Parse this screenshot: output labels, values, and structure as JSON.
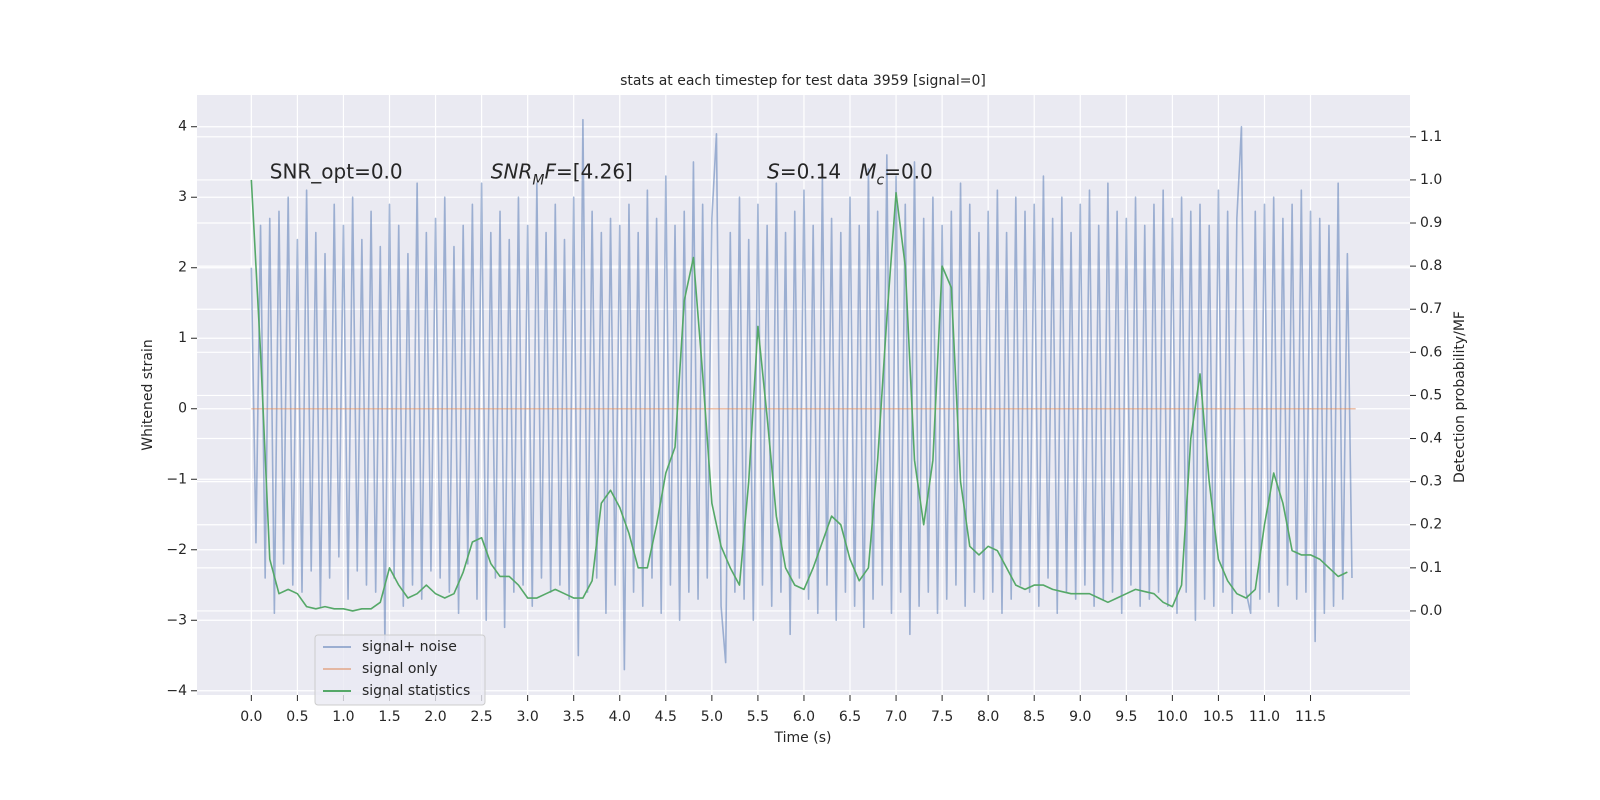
{
  "chart_data": {
    "type": "line",
    "title": "stats at each timestep for test data 3959 [signal=0]",
    "xlabel": "Time (s)",
    "ylabel": "Whitened strain",
    "y2label": "Detection probability/MF",
    "xlim": [
      -0.59,
      12.58
    ],
    "ylim": [
      -4.06,
      4.45
    ],
    "y2lim": [
      -0.195,
      1.197
    ],
    "xticks": [
      {
        "value": 0,
        "label": "0.0"
      },
      0.5,
      {
        "value": 1,
        "label": "1.0"
      },
      1.5,
      {
        "value": 2,
        "label": "2.0"
      },
      2.5,
      {
        "value": 3,
        "label": "3.0"
      },
      3.5,
      {
        "value": 4,
        "label": "4.0"
      },
      4.5,
      {
        "value": 5,
        "label": "5.0"
      },
      5.5,
      {
        "value": 6,
        "label": "6.0"
      },
      6.5,
      {
        "value": 7,
        "label": "7.0"
      },
      7.5,
      {
        "value": 8,
        "label": "8.0"
      },
      8.5,
      {
        "value": 9,
        "label": "9.0"
      },
      9.5,
      {
        "value": 10,
        "label": "10.0"
      },
      10.5,
      {
        "value": 11,
        "label": "11.0"
      },
      11.5
    ],
    "yticks": [
      {
        "value": -4,
        "label": "−4"
      },
      {
        "value": -3,
        "label": "−3"
      },
      {
        "value": -2,
        "label": "−2"
      },
      {
        "value": -1,
        "label": "−1"
      },
      0,
      1,
      2,
      3,
      4
    ],
    "y2ticks": [
      {
        "value": 0,
        "label": "0.0"
      },
      0.1,
      0.2,
      0.3,
      0.4,
      0.5,
      0.6,
      0.7,
      0.8,
      0.9,
      {
        "value": 1,
        "label": "1.0"
      },
      1.1
    ],
    "grid": true,
    "legend": "lower left",
    "annotations": [
      {
        "x": 0.2,
        "y": 3.35,
        "parts": [
          {
            "text": "SNR_opt=0.0"
          }
        ]
      },
      {
        "x": 2.6,
        "y": 3.35,
        "parts": [
          {
            "text": "SNR",
            "italic": true
          },
          {
            "text": "M",
            "italic": true,
            "sub": true
          },
          {
            "text": "F",
            "italic": true
          },
          {
            "text": "=[4.26]"
          }
        ]
      },
      {
        "x": 5.6,
        "y": 3.35,
        "parts": [
          {
            "text": "S",
            "italic": true
          },
          {
            "text": "=0.14"
          }
        ]
      },
      {
        "x": 6.6,
        "y": 3.35,
        "parts": [
          {
            "text": "M",
            "italic": true
          },
          {
            "text": "c",
            "italic": true,
            "sub": true
          },
          {
            "text": "=0.0"
          }
        ]
      }
    ],
    "series": [
      {
        "name": "signal+ noise",
        "color": "#4c72b0",
        "opacity": 0.5,
        "x": [
          0,
          0.05,
          0.1,
          0.15,
          0.2,
          0.25,
          0.3,
          0.35,
          0.4,
          0.45,
          0.5,
          0.55,
          0.6,
          0.65,
          0.7,
          0.75,
          0.8,
          0.85,
          0.9,
          0.95,
          1,
          1.05,
          1.1,
          1.15,
          1.2,
          1.25,
          1.3,
          1.35,
          1.4,
          1.45,
          1.5,
          1.55,
          1.6,
          1.65,
          1.7,
          1.75,
          1.8,
          1.85,
          1.9,
          1.95,
          2,
          2.05,
          2.1,
          2.15,
          2.2,
          2.25,
          2.3,
          2.35,
          2.4,
          2.45,
          2.5,
          2.55,
          2.6,
          2.65,
          2.7,
          2.75,
          2.8,
          2.85,
          2.9,
          2.95,
          3,
          3.05,
          3.1,
          3.15,
          3.2,
          3.25,
          3.3,
          3.35,
          3.4,
          3.45,
          3.5,
          3.55,
          3.6,
          3.65,
          3.7,
          3.75,
          3.8,
          3.85,
          3.9,
          3.95,
          4,
          4.05,
          4.1,
          4.15,
          4.2,
          4.25,
          4.3,
          4.35,
          4.4,
          4.45,
          4.5,
          4.55,
          4.6,
          4.65,
          4.7,
          4.75,
          4.8,
          4.85,
          4.9,
          4.95,
          5,
          5.05,
          5.1,
          5.15,
          5.2,
          5.25,
          5.3,
          5.35,
          5.4,
          5.45,
          5.5,
          5.55,
          5.6,
          5.65,
          5.7,
          5.75,
          5.8,
          5.85,
          5.9,
          5.95,
          6,
          6.05,
          6.1,
          6.15,
          6.2,
          6.25,
          6.3,
          6.35,
          6.4,
          6.45,
          6.5,
          6.55,
          6.6,
          6.65,
          6.7,
          6.75,
          6.8,
          6.85,
          6.9,
          6.95,
          7,
          7.05,
          7.1,
          7.15,
          7.2,
          7.25,
          7.3,
          7.35,
          7.4,
          7.45,
          7.5,
          7.55,
          7.6,
          7.65,
          7.7,
          7.75,
          7.8,
          7.85,
          7.9,
          7.95,
          8,
          8.05,
          8.1,
          8.15,
          8.2,
          8.25,
          8.3,
          8.35,
          8.4,
          8.45,
          8.5,
          8.55,
          8.6,
          8.65,
          8.7,
          8.75,
          8.8,
          8.85,
          8.9,
          8.95,
          9,
          9.05,
          9.1,
          9.15,
          9.2,
          9.25,
          9.3,
          9.35,
          9.4,
          9.45,
          9.5,
          9.55,
          9.6,
          9.65,
          9.7,
          9.75,
          9.8,
          9.85,
          9.9,
          9.95,
          10,
          10.05,
          10.1,
          10.15,
          10.2,
          10.25,
          10.3,
          10.35,
          10.4,
          10.45,
          10.5,
          10.55,
          10.6,
          10.65,
          10.7,
          10.75,
          10.8,
          10.85,
          10.9,
          10.95,
          11,
          11.05,
          11.1,
          11.15,
          11.2,
          11.25,
          11.3,
          11.35,
          11.4,
          11.45,
          11.5,
          11.55,
          11.6,
          11.65,
          11.7,
          11.75,
          11.8,
          11.85,
          11.9,
          11.95
        ],
        "values": [
          2.0,
          -1.9,
          2.6,
          -2.4,
          2.7,
          -2.9,
          2.8,
          -2.2,
          3.0,
          -2.5,
          2.4,
          -2.6,
          3.1,
          -2.3,
          2.5,
          -2.8,
          2.2,
          -2.4,
          2.9,
          -2.1,
          2.6,
          -2.7,
          3.0,
          -2.3,
          2.4,
          -2.5,
          2.8,
          -2.6,
          2.3,
          -3.3,
          2.9,
          -2.4,
          2.6,
          -2.8,
          2.2,
          -2.5,
          3.2,
          -2.7,
          2.5,
          -2.3,
          2.7,
          -2.4,
          3.0,
          -2.6,
          2.3,
          -2.9,
          2.6,
          -2.2,
          2.9,
          -2.7,
          3.2,
          -3.0,
          2.5,
          -2.4,
          2.8,
          -3.1,
          2.4,
          -2.6,
          3.0,
          -2.5,
          2.6,
          -2.8,
          3.2,
          -2.4,
          2.5,
          -2.6,
          2.9,
          -2.5,
          2.4,
          -2.7,
          3.0,
          -3.5,
          4.1,
          -2.6,
          2.8,
          -2.4,
          2.5,
          -2.9,
          2.7,
          -2.5,
          2.6,
          -3.7,
          2.9,
          -2.6,
          2.5,
          -2.8,
          3.1,
          -2.4,
          2.7,
          -2.9,
          3.3,
          -2.5,
          2.6,
          -3.0,
          2.8,
          -2.6,
          3.5,
          -2.7,
          2.9,
          -2.4,
          2.7,
          3.9,
          -2.8,
          -3.6,
          2.5,
          -2.6,
          3.0,
          -2.7,
          2.4,
          -3.0,
          2.9,
          -2.5,
          2.6,
          -2.8,
          3.2,
          -2.6,
          2.5,
          -3.2,
          2.8,
          -2.4,
          3.1,
          -2.7,
          2.6,
          -2.9,
          3.3,
          -2.5,
          2.7,
          -3.0,
          2.5,
          -2.6,
          3.0,
          -2.8,
          2.6,
          -3.1,
          3.4,
          -2.7,
          2.8,
          -2.5,
          3.6,
          -2.9,
          3.3,
          -2.6,
          2.9,
          -3.2,
          3.5,
          -2.8,
          2.7,
          -2.6,
          3.0,
          -2.9,
          2.6,
          -2.7,
          2.8,
          -2.5,
          3.2,
          -2.8,
          2.9,
          -2.6,
          2.5,
          -2.7,
          2.8,
          -2.6,
          3.1,
          -2.9,
          2.5,
          -2.7,
          3.0,
          -2.5,
          2.8,
          -2.6,
          2.9,
          -2.8,
          3.3,
          -2.4,
          2.7,
          -2.9,
          3.0,
          -2.6,
          2.5,
          -2.7,
          2.9,
          -2.5,
          3.1,
          -2.8,
          2.6,
          -2.7,
          3.2,
          -2.6,
          2.8,
          -2.9,
          2.7,
          -2.5,
          3.0,
          -2.8,
          2.6,
          -2.7,
          2.9,
          -2.6,
          3.1,
          -2.8,
          2.7,
          -2.9,
          3.0,
          -2.6,
          2.8,
          -3.0,
          2.9,
          -2.7,
          2.6,
          -2.8,
          3.1,
          -2.6,
          2.8,
          -2.9,
          2.7,
          4.0,
          -2.6,
          -2.9,
          2.8,
          -2.7,
          2.9,
          -2.6,
          3.0,
          -2.8,
          2.7,
          -2.5,
          2.9,
          -2.7,
          3.1,
          -2.6,
          2.8,
          -3.3,
          2.7,
          -2.9,
          2.6,
          -2.8,
          3.2,
          -2.7,
          2.2,
          -2.4
        ]
      },
      {
        "name": "signal only",
        "color": "#dd8452",
        "opacity": 0.5,
        "x": [
          0,
          11.99
        ],
        "values": [
          0,
          0
        ]
      },
      {
        "name": "signal statistics",
        "color": "#55a868",
        "opacity": 1,
        "axis": "y2",
        "x": [
          0,
          0.1,
          0.2,
          0.3,
          0.4,
          0.5,
          0.6,
          0.7,
          0.8,
          0.9,
          1,
          1.1,
          1.2,
          1.3,
          1.4,
          1.5,
          1.6,
          1.7,
          1.8,
          1.9,
          2,
          2.1,
          2.2,
          2.3,
          2.4,
          2.5,
          2.6,
          2.7,
          2.8,
          2.9,
          3,
          3.1,
          3.2,
          3.3,
          3.4,
          3.5,
          3.6,
          3.7,
          3.8,
          3.9,
          4,
          4.1,
          4.2,
          4.3,
          4.4,
          4.5,
          4.6,
          4.7,
          4.8,
          4.9,
          5,
          5.1,
          5.2,
          5.3,
          5.4,
          5.5,
          5.6,
          5.7,
          5.8,
          5.9,
          6,
          6.1,
          6.2,
          6.3,
          6.4,
          6.5,
          6.6,
          6.7,
          6.8,
          6.9,
          7,
          7.1,
          7.2,
          7.3,
          7.4,
          7.5,
          7.6,
          7.7,
          7.8,
          7.9,
          8,
          8.1,
          8.2,
          8.3,
          8.4,
          8.5,
          8.6,
          8.7,
          8.8,
          8.9,
          9,
          9.1,
          9.2,
          9.3,
          9.4,
          9.5,
          9.6,
          9.7,
          9.8,
          9.9,
          10,
          10.1,
          10.2,
          10.3,
          10.4,
          10.5,
          10.6,
          10.7,
          10.8,
          10.9,
          11,
          11.1,
          11.2,
          11.3,
          11.4,
          11.5,
          11.6,
          11.7,
          11.8,
          11.9
        ],
        "values": [
          1.0,
          0.6,
          0.12,
          0.04,
          0.05,
          0.04,
          0.01,
          0.005,
          0.01,
          0.005,
          0.005,
          0.0,
          0.005,
          0.005,
          0.02,
          0.1,
          0.06,
          0.03,
          0.04,
          0.06,
          0.04,
          0.03,
          0.04,
          0.09,
          0.16,
          0.17,
          0.11,
          0.08,
          0.08,
          0.06,
          0.03,
          0.03,
          0.04,
          0.05,
          0.04,
          0.03,
          0.03,
          0.07,
          0.25,
          0.28,
          0.24,
          0.18,
          0.1,
          0.1,
          0.2,
          0.32,
          0.38,
          0.72,
          0.82,
          0.55,
          0.25,
          0.15,
          0.1,
          0.06,
          0.3,
          0.66,
          0.45,
          0.22,
          0.1,
          0.06,
          0.05,
          0.1,
          0.16,
          0.22,
          0.2,
          0.12,
          0.07,
          0.1,
          0.35,
          0.68,
          0.97,
          0.8,
          0.35,
          0.2,
          0.35,
          0.8,
          0.75,
          0.3,
          0.15,
          0.13,
          0.15,
          0.14,
          0.1,
          0.06,
          0.05,
          0.06,
          0.06,
          0.05,
          0.045,
          0.04,
          0.04,
          0.04,
          0.03,
          0.02,
          0.03,
          0.04,
          0.05,
          0.045,
          0.04,
          0.02,
          0.01,
          0.06,
          0.4,
          0.55,
          0.3,
          0.12,
          0.07,
          0.04,
          0.03,
          0.05,
          0.2,
          0.32,
          0.25,
          0.14,
          0.13,
          0.13,
          0.12,
          0.1,
          0.08,
          0.09
        ]
      }
    ]
  }
}
